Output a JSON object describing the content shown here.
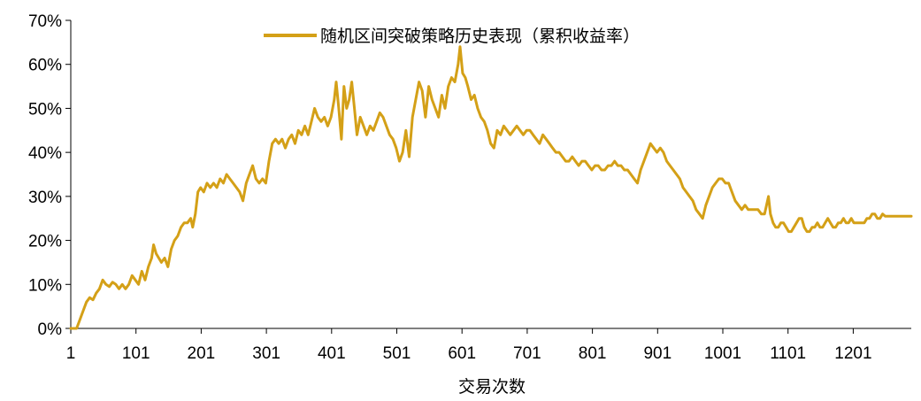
{
  "chart_data": {
    "type": "line",
    "title": "",
    "xlabel": "交易次数",
    "ylabel": "",
    "x_ticks": [
      "1",
      "101",
      "201",
      "301",
      "401",
      "501",
      "601",
      "701",
      "801",
      "901",
      "1001",
      "1101",
      "1201"
    ],
    "y_ticks": [
      "0%",
      "10%",
      "20%",
      "30%",
      "40%",
      "50%",
      "60%",
      "70%"
    ],
    "xlim": [
      1,
      1290
    ],
    "ylim": [
      0,
      70
    ],
    "grid": false,
    "legend_position": "top-center",
    "line_color": "#D4A017",
    "series": [
      {
        "name": "随机区间突破策略历史表现（累积收益率）",
        "points": [
          [
            1,
            0
          ],
          [
            10,
            0
          ],
          [
            15,
            2
          ],
          [
            20,
            4
          ],
          [
            25,
            6
          ],
          [
            30,
            7
          ],
          [
            35,
            6.5
          ],
          [
            40,
            8
          ],
          [
            45,
            9
          ],
          [
            50,
            11
          ],
          [
            55,
            10
          ],
          [
            60,
            9.5
          ],
          [
            65,
            10.5
          ],
          [
            70,
            10
          ],
          [
            75,
            9
          ],
          [
            80,
            10
          ],
          [
            85,
            9
          ],
          [
            90,
            10
          ],
          [
            95,
            12
          ],
          [
            100,
            11
          ],
          [
            105,
            10
          ],
          [
            110,
            13
          ],
          [
            115,
            11
          ],
          [
            120,
            14
          ],
          [
            125,
            16
          ],
          [
            128,
            19
          ],
          [
            132,
            17
          ],
          [
            136,
            16
          ],
          [
            140,
            15
          ],
          [
            145,
            16
          ],
          [
            150,
            14
          ],
          [
            155,
            18
          ],
          [
            160,
            20
          ],
          [
            165,
            21
          ],
          [
            170,
            23
          ],
          [
            175,
            24
          ],
          [
            180,
            24
          ],
          [
            185,
            25
          ],
          [
            188,
            23
          ],
          [
            192,
            26
          ],
          [
            196,
            31
          ],
          [
            200,
            32
          ],
          [
            205,
            31
          ],
          [
            210,
            33
          ],
          [
            215,
            32
          ],
          [
            220,
            33
          ],
          [
            225,
            32
          ],
          [
            230,
            34
          ],
          [
            235,
            33
          ],
          [
            240,
            35
          ],
          [
            245,
            34
          ],
          [
            250,
            33
          ],
          [
            255,
            32
          ],
          [
            260,
            31
          ],
          [
            265,
            29
          ],
          [
            270,
            33
          ],
          [
            275,
            35
          ],
          [
            280,
            37
          ],
          [
            285,
            34
          ],
          [
            290,
            33
          ],
          [
            295,
            34
          ],
          [
            300,
            33
          ],
          [
            305,
            38
          ],
          [
            310,
            42
          ],
          [
            315,
            43
          ],
          [
            320,
            42
          ],
          [
            325,
            43
          ],
          [
            330,
            41
          ],
          [
            335,
            43
          ],
          [
            340,
            44
          ],
          [
            345,
            42
          ],
          [
            350,
            45
          ],
          [
            355,
            44
          ],
          [
            360,
            46
          ],
          [
            365,
            44
          ],
          [
            370,
            47
          ],
          [
            375,
            50
          ],
          [
            380,
            48
          ],
          [
            385,
            47
          ],
          [
            390,
            48
          ],
          [
            395,
            46
          ],
          [
            400,
            48
          ],
          [
            405,
            52
          ],
          [
            408,
            56
          ],
          [
            412,
            50
          ],
          [
            416,
            43
          ],
          [
            420,
            55
          ],
          [
            424,
            50
          ],
          [
            428,
            52
          ],
          [
            432,
            56
          ],
          [
            436,
            50
          ],
          [
            440,
            44
          ],
          [
            445,
            48
          ],
          [
            450,
            46
          ],
          [
            455,
            44
          ],
          [
            460,
            46
          ],
          [
            465,
            45
          ],
          [
            470,
            47
          ],
          [
            475,
            49
          ],
          [
            480,
            48
          ],
          [
            485,
            46
          ],
          [
            490,
            44
          ],
          [
            495,
            43
          ],
          [
            500,
            41
          ],
          [
            505,
            38
          ],
          [
            510,
            40
          ],
          [
            515,
            45
          ],
          [
            520,
            39
          ],
          [
            525,
            48
          ],
          [
            530,
            52
          ],
          [
            535,
            56
          ],
          [
            540,
            54
          ],
          [
            545,
            48
          ],
          [
            550,
            55
          ],
          [
            555,
            52
          ],
          [
            560,
            50
          ],
          [
            565,
            48
          ],
          [
            570,
            53
          ],
          [
            575,
            50
          ],
          [
            580,
            55
          ],
          [
            585,
            57
          ],
          [
            590,
            56
          ],
          [
            595,
            60
          ],
          [
            598,
            64
          ],
          [
            602,
            58
          ],
          [
            606,
            57
          ],
          [
            610,
            55
          ],
          [
            615,
            52
          ],
          [
            620,
            53
          ],
          [
            625,
            50
          ],
          [
            630,
            48
          ],
          [
            635,
            47
          ],
          [
            640,
            45
          ],
          [
            645,
            42
          ],
          [
            650,
            41
          ],
          [
            655,
            45
          ],
          [
            660,
            44
          ],
          [
            665,
            46
          ],
          [
            670,
            45
          ],
          [
            675,
            44
          ],
          [
            680,
            45
          ],
          [
            685,
            46
          ],
          [
            690,
            45
          ],
          [
            695,
            44
          ],
          [
            700,
            45
          ],
          [
            705,
            45
          ],
          [
            710,
            44
          ],
          [
            715,
            43
          ],
          [
            720,
            42
          ],
          [
            725,
            44
          ],
          [
            730,
            43
          ],
          [
            735,
            42
          ],
          [
            740,
            41
          ],
          [
            745,
            40
          ],
          [
            750,
            40
          ],
          [
            755,
            39
          ],
          [
            760,
            38
          ],
          [
            765,
            38
          ],
          [
            770,
            39
          ],
          [
            775,
            38
          ],
          [
            780,
            37
          ],
          [
            785,
            38
          ],
          [
            790,
            38
          ],
          [
            795,
            37
          ],
          [
            800,
            36
          ],
          [
            805,
            37
          ],
          [
            810,
            37
          ],
          [
            815,
            36
          ],
          [
            820,
            36
          ],
          [
            825,
            37
          ],
          [
            830,
            37
          ],
          [
            835,
            38
          ],
          [
            840,
            37
          ],
          [
            845,
            37
          ],
          [
            850,
            36
          ],
          [
            855,
            36
          ],
          [
            860,
            35
          ],
          [
            865,
            34
          ],
          [
            870,
            33
          ],
          [
            875,
            36
          ],
          [
            880,
            38
          ],
          [
            885,
            40
          ],
          [
            890,
            42
          ],
          [
            895,
            41
          ],
          [
            900,
            40
          ],
          [
            905,
            41
          ],
          [
            910,
            40
          ],
          [
            915,
            38
          ],
          [
            920,
            37
          ],
          [
            925,
            36
          ],
          [
            930,
            35
          ],
          [
            935,
            34
          ],
          [
            940,
            32
          ],
          [
            945,
            31
          ],
          [
            950,
            30
          ],
          [
            955,
            29
          ],
          [
            960,
            27
          ],
          [
            965,
            26
          ],
          [
            970,
            25
          ],
          [
            975,
            28
          ],
          [
            980,
            30
          ],
          [
            985,
            32
          ],
          [
            990,
            33
          ],
          [
            995,
            34
          ],
          [
            1000,
            34
          ],
          [
            1005,
            33
          ],
          [
            1010,
            33
          ],
          [
            1015,
            31
          ],
          [
            1020,
            29
          ],
          [
            1025,
            28
          ],
          [
            1030,
            27
          ],
          [
            1035,
            28
          ],
          [
            1040,
            27
          ],
          [
            1045,
            27
          ],
          [
            1050,
            27
          ],
          [
            1055,
            27
          ],
          [
            1060,
            26
          ],
          [
            1065,
            26
          ],
          [
            1068,
            28
          ],
          [
            1071,
            30
          ],
          [
            1074,
            26
          ],
          [
            1078,
            24
          ],
          [
            1082,
            23
          ],
          [
            1086,
            23
          ],
          [
            1090,
            24
          ],
          [
            1094,
            24
          ],
          [
            1098,
            23
          ],
          [
            1102,
            22
          ],
          [
            1106,
            22
          ],
          [
            1110,
            23
          ],
          [
            1114,
            24
          ],
          [
            1118,
            25
          ],
          [
            1122,
            25
          ],
          [
            1126,
            23
          ],
          [
            1130,
            22
          ],
          [
            1134,
            22
          ],
          [
            1138,
            23
          ],
          [
            1142,
            23
          ],
          [
            1146,
            24
          ],
          [
            1150,
            23
          ],
          [
            1154,
            23
          ],
          [
            1158,
            24
          ],
          [
            1162,
            25
          ],
          [
            1166,
            24
          ],
          [
            1170,
            23
          ],
          [
            1174,
            23
          ],
          [
            1178,
            24
          ],
          [
            1182,
            24
          ],
          [
            1186,
            25
          ],
          [
            1190,
            24
          ],
          [
            1194,
            24
          ],
          [
            1198,
            25
          ],
          [
            1202,
            24
          ],
          [
            1206,
            24
          ],
          [
            1210,
            24
          ],
          [
            1214,
            24
          ],
          [
            1218,
            24
          ],
          [
            1222,
            25
          ],
          [
            1226,
            25
          ],
          [
            1230,
            26
          ],
          [
            1234,
            26
          ],
          [
            1238,
            25
          ],
          [
            1242,
            25
          ],
          [
            1246,
            26
          ],
          [
            1250,
            25.5
          ],
          [
            1254,
            25.5
          ],
          [
            1258,
            25.5
          ],
          [
            1262,
            25.5
          ],
          [
            1266,
            25.5
          ],
          [
            1270,
            25.5
          ],
          [
            1274,
            25.5
          ],
          [
            1278,
            25.5
          ],
          [
            1282,
            25.5
          ],
          [
            1286,
            25.5
          ],
          [
            1290,
            25.5
          ]
        ]
      }
    ]
  }
}
